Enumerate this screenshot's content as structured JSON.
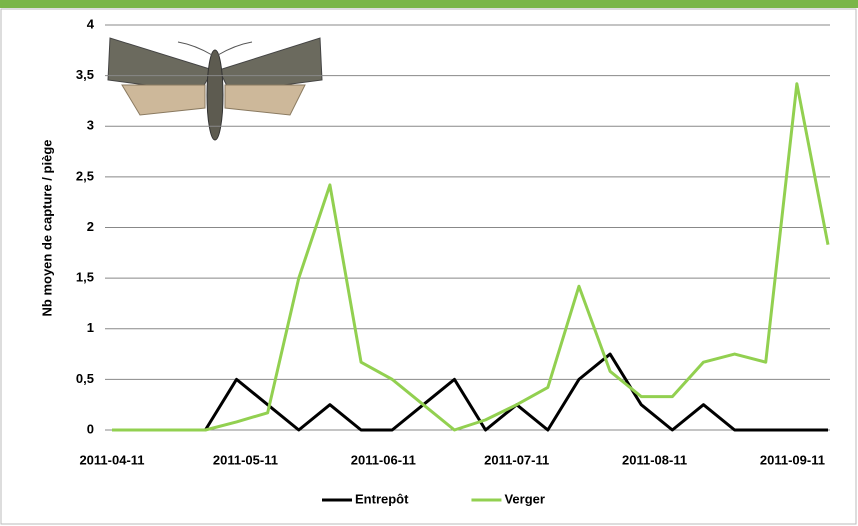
{
  "chart_data": {
    "type": "line",
    "y_label": "Nb moyen de capture / piège",
    "x": [
      "2011-04-11",
      "2011-04-18",
      "2011-04-25",
      "2011-05-02",
      "2011-05-09",
      "2011-05-16",
      "2011-05-23",
      "2011-05-30",
      "2011-06-06",
      "2011-06-13",
      "2011-06-20",
      "2011-06-27",
      "2011-07-04",
      "2011-07-11",
      "2011-07-18",
      "2011-07-25",
      "2011-08-01",
      "2011-08-08",
      "2011-08-15",
      "2011-08-22",
      "2011-08-29",
      "2011-09-05",
      "2011-09-12",
      "2011-09-19"
    ],
    "series": [
      {
        "name": "Entrepôt",
        "color": "#000000",
        "values": [
          0,
          0,
          0,
          0,
          0.5,
          0.25,
          0,
          0.25,
          0,
          0,
          0.25,
          0.5,
          0,
          0.25,
          0,
          0.5,
          0.75,
          0.25,
          0,
          0.25,
          0,
          0,
          0,
          0
        ]
      },
      {
        "name": "Verger",
        "color": "#92d050",
        "values": [
          0,
          0,
          0,
          0,
          0.08,
          0.17,
          1.5,
          2.42,
          0.67,
          0.5,
          0.25,
          0,
          0.1,
          0.25,
          0.42,
          1.42,
          0.58,
          0.33,
          0.33,
          0.67,
          0.75,
          0.67,
          3.42,
          1.83
        ]
      }
    ],
    "xlim": [
      "2011-04-11",
      "2011-09-19"
    ],
    "xticks": [
      "2011-04-11",
      "2011-05-11",
      "2011-06-11",
      "2011-07-11",
      "2011-08-11",
      "2011-09-11"
    ],
    "ylim": [
      0,
      4
    ],
    "yticks": [
      0,
      {
        "value": 0.5,
        "label": "0,5"
      },
      1,
      {
        "value": 1.5,
        "label": "1,5"
      },
      2,
      {
        "value": 2.5,
        "label": "2,5"
      },
      3,
      {
        "value": 3.5,
        "label": "3,5"
      },
      4
    ],
    "grid": true,
    "legend": "bottom"
  }
}
